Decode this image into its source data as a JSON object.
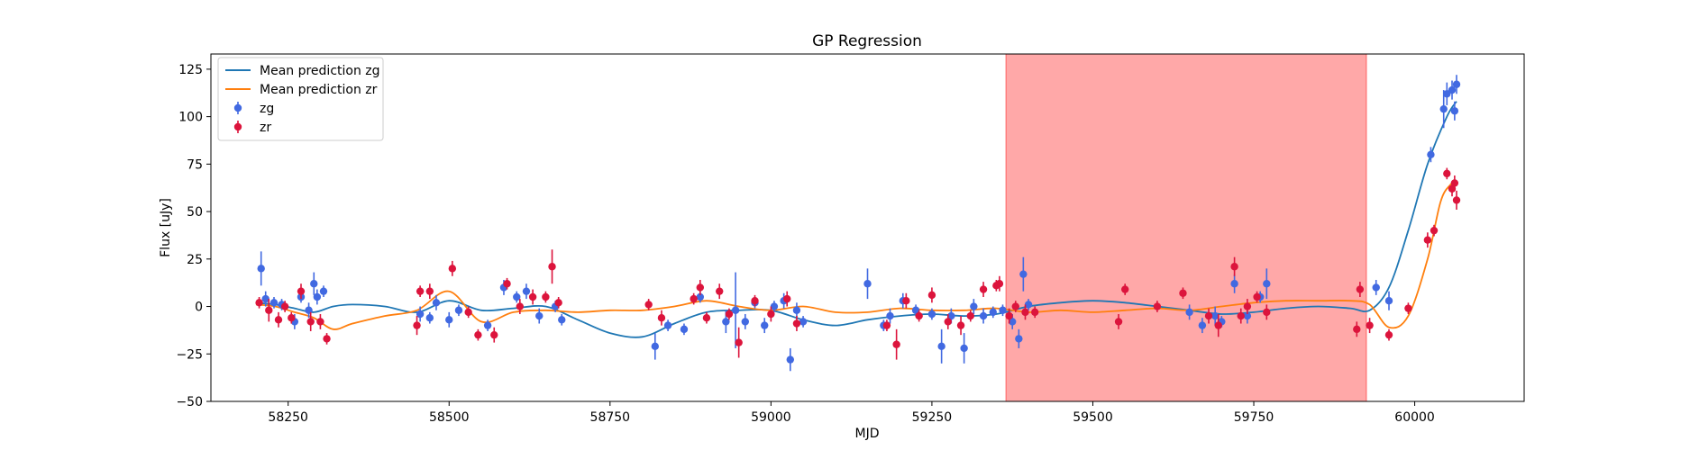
{
  "chart_data": {
    "type": "scatter",
    "title": "GP Regression",
    "xlabel": "MJD",
    "ylabel": "Flux [uJy]",
    "xlim": [
      58130,
      60170
    ],
    "ylim": [
      -50,
      133
    ],
    "xticks": [
      58250,
      58500,
      58750,
      59000,
      59250,
      59500,
      59750,
      60000
    ],
    "yticks": [
      -50,
      -25,
      0,
      25,
      50,
      75,
      100,
      125
    ],
    "grid": false,
    "legend_position": "top-left",
    "shaded_region": {
      "x0": 59365,
      "x1": 59925,
      "color": "#ff0000",
      "opacity": 0.34
    },
    "legend": [
      {
        "label": "Mean prediction zg",
        "kind": "line",
        "color": "#1f77b4"
      },
      {
        "label": "Mean prediction zr",
        "kind": "line",
        "color": "#ff7f0e"
      },
      {
        "label": "zg",
        "kind": "marker",
        "color": "#4169e1"
      },
      {
        "label": "zr",
        "kind": "marker",
        "color": "#dc143c"
      }
    ],
    "series": [
      {
        "name": "Mean prediction zg",
        "kind": "line",
        "color": "#1f77b4",
        "x": [
          58200,
          58230,
          58260,
          58290,
          58320,
          58350,
          58400,
          58450,
          58500,
          58550,
          58600,
          58650,
          58700,
          58750,
          58800,
          58850,
          58900,
          58950,
          59000,
          59050,
          59100,
          59150,
          59200,
          59250,
          59300,
          59350,
          59400,
          59450,
          59500,
          59550,
          59600,
          59650,
          59700,
          59750,
          59800,
          59850,
          59900,
          59930,
          59960,
          59990,
          60020,
          60050,
          60065
        ],
        "y": [
          2,
          1,
          -1,
          -3,
          0,
          1,
          0,
          -3,
          3,
          -2,
          -1,
          0,
          -7,
          -14,
          -16,
          -9,
          -3,
          -2,
          -2,
          -7,
          -10,
          -7,
          -5,
          -4,
          -5,
          -4,
          0,
          2,
          3,
          2,
          0,
          -2,
          -4,
          -3,
          -1,
          0,
          -1,
          -2,
          10,
          40,
          75,
          100,
          108
        ]
      },
      {
        "name": "Mean prediction zr",
        "kind": "line",
        "color": "#ff7f0e",
        "x": [
          58200,
          58230,
          58260,
          58290,
          58320,
          58350,
          58400,
          58450,
          58500,
          58550,
          58600,
          58650,
          58700,
          58750,
          58800,
          58850,
          58900,
          58950,
          59000,
          59050,
          59100,
          59150,
          59200,
          59250,
          59300,
          59350,
          59400,
          59450,
          59500,
          59550,
          59600,
          59650,
          59700,
          59750,
          59800,
          59850,
          59900,
          59930,
          59960,
          59990,
          60020,
          60040,
          60055,
          60065
        ],
        "y": [
          1,
          0,
          -3,
          -6,
          -12,
          -9,
          -5,
          -2,
          8,
          -8,
          -3,
          -2,
          -3,
          -2,
          -2,
          0,
          3,
          0,
          -2,
          0,
          -3,
          -3,
          -1,
          -2,
          -2,
          -1,
          -3,
          -2,
          -3,
          -2,
          -1,
          -2,
          0,
          2,
          3,
          3,
          3,
          1,
          -11,
          -5,
          25,
          55,
          64,
          66
        ]
      },
      {
        "name": "zg",
        "kind": "errorbar",
        "color": "#4169e1",
        "x": [
          58208,
          58215,
          58228,
          58240,
          58260,
          58270,
          58282,
          58290,
          58295,
          58305,
          58455,
          58470,
          58480,
          58500,
          58515,
          58560,
          58585,
          58605,
          58620,
          58640,
          58665,
          58675,
          58820,
          58840,
          58865,
          58890,
          58930,
          58945,
          58960,
          58975,
          58990,
          59005,
          59020,
          59030,
          59040,
          59050,
          59150,
          59175,
          59185,
          59205,
          59225,
          59250,
          59265,
          59280,
          59300,
          59315,
          59330,
          59345,
          59360,
          59375,
          59385,
          59392,
          59400,
          59650,
          59670,
          59690,
          59700,
          59720,
          59740,
          59760,
          59770,
          59940,
          59960,
          60025,
          60045,
          60050,
          60058,
          60062,
          60065
        ],
        "y": [
          20,
          4,
          2,
          1,
          -8,
          5,
          -2,
          12,
          5,
          8,
          -4,
          -6,
          2,
          -7,
          -2,
          -10,
          10,
          5,
          8,
          -5,
          0,
          -7,
          -21,
          -10,
          -12,
          5,
          -8,
          -2,
          -8,
          2,
          -10,
          0,
          3,
          -28,
          -2,
          -8,
          12,
          -10,
          -5,
          3,
          -2,
          -4,
          -21,
          -5,
          -22,
          0,
          -5,
          -3,
          -2,
          -8,
          -17,
          17,
          1,
          -3,
          -10,
          -5,
          -8,
          12,
          -5,
          5,
          12,
          10,
          3,
          80,
          104,
          112,
          114,
          103,
          117
        ],
        "err": [
          9,
          4,
          3,
          3,
          4,
          3,
          4,
          6,
          4,
          3,
          4,
          3,
          4,
          4,
          3,
          3,
          4,
          3,
          4,
          4,
          3,
          3,
          7,
          3,
          3,
          3,
          6,
          20,
          4,
          3,
          4,
          3,
          4,
          6,
          4,
          3,
          8,
          3,
          4,
          4,
          3,
          3,
          9,
          4,
          8,
          4,
          4,
          3,
          3,
          4,
          5,
          9,
          3,
          4,
          4,
          5,
          3,
          5,
          4,
          3,
          8,
          4,
          5,
          4,
          10,
          6,
          5,
          5,
          5
        ]
      },
      {
        "name": "zr",
        "kind": "errorbar",
        "color": "#dc143c",
        "x": [
          58205,
          58220,
          58235,
          58245,
          58255,
          58270,
          58285,
          58300,
          58310,
          58450,
          58455,
          58470,
          58505,
          58530,
          58545,
          58570,
          58590,
          58610,
          58630,
          58650,
          58660,
          58670,
          58810,
          58830,
          58880,
          58890,
          58900,
          58920,
          58935,
          58950,
          58975,
          59000,
          59025,
          59040,
          59180,
          59195,
          59210,
          59230,
          59250,
          59275,
          59295,
          59310,
          59330,
          59350,
          59355,
          59370,
          59380,
          59395,
          59410,
          59540,
          59550,
          59600,
          59640,
          59680,
          59695,
          59720,
          59730,
          59740,
          59755,
          59770,
          59910,
          59915,
          59930,
          59960,
          59990,
          60020,
          60030,
          60050,
          60058,
          60062,
          60065
        ],
        "y": [
          2,
          -2,
          -7,
          0,
          -6,
          8,
          -8,
          -8,
          -17,
          -10,
          8,
          8,
          20,
          -3,
          -15,
          -15,
          12,
          0,
          5,
          5,
          21,
          2,
          1,
          -6,
          4,
          10,
          -6,
          8,
          -4,
          -19,
          3,
          -4,
          4,
          -9,
          -10,
          -20,
          3,
          -5,
          6,
          -8,
          -10,
          -5,
          9,
          11,
          12,
          -5,
          0,
          -3,
          -3,
          -8,
          9,
          0,
          7,
          -5,
          -10,
          21,
          -5,
          0,
          5,
          -3,
          -12,
          9,
          -10,
          -15,
          -1,
          35,
          40,
          70,
          62,
          65,
          56
        ],
        "err": [
          3,
          6,
          4,
          3,
          3,
          4,
          5,
          4,
          3,
          5,
          3,
          4,
          4,
          3,
          3,
          4,
          3,
          4,
          4,
          3,
          9,
          3,
          3,
          4,
          3,
          4,
          3,
          4,
          3,
          8,
          3,
          4,
          4,
          4,
          3,
          8,
          4,
          3,
          4,
          4,
          5,
          3,
          4,
          3,
          4,
          4,
          3,
          4,
          3,
          4,
          3,
          3,
          3,
          4,
          6,
          5,
          4,
          4,
          3,
          4,
          4,
          4,
          4,
          3,
          3,
          4,
          3,
          3,
          4,
          4,
          5
        ]
      }
    ]
  }
}
